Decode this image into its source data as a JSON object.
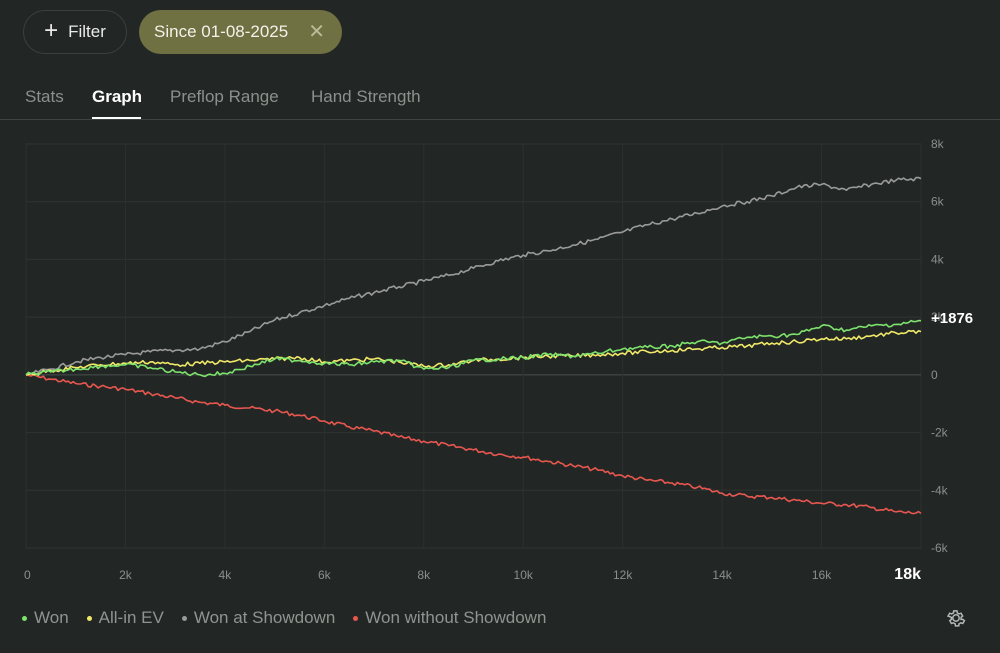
{
  "toolbar": {
    "filter_label": "Filter",
    "chip_label": "Since 01-08-2025"
  },
  "tabs": [
    {
      "label": "Stats",
      "active": false
    },
    {
      "label": "Graph",
      "active": true
    },
    {
      "label": "Preflop Range",
      "active": false
    },
    {
      "label": "Hand Strength",
      "active": false
    }
  ],
  "colors": {
    "won": "#7ee36c",
    "allin_ev": "#f0e868",
    "showdown": "#9a9a9a",
    "no_showdown": "#e8574f"
  },
  "chart_data": {
    "type": "line",
    "xlim": [
      0,
      18000
    ],
    "ylim": [
      -6000,
      8000
    ],
    "x_ticks": [
      "0",
      "2k",
      "4k",
      "6k",
      "8k",
      "10k",
      "12k",
      "14k",
      "16k",
      "18k"
    ],
    "y_ticks": [
      "8k",
      "6k",
      "4k",
      "2k",
      "0",
      "-2k",
      "-4k",
      "-6k"
    ],
    "end_label": "+1876",
    "grid": true,
    "legend_position": "bottom-left",
    "series": [
      {
        "name": "Won",
        "color_key": "won",
        "x": [
          0,
          500,
          1000,
          1500,
          2000,
          2500,
          3000,
          3500,
          4000,
          4500,
          5000,
          5500,
          6000,
          6500,
          7000,
          7500,
          8000,
          8500,
          9000,
          9500,
          10000,
          10500,
          11000,
          11500,
          12000,
          12500,
          13000,
          13500,
          14000,
          14500,
          15000,
          15500,
          16000,
          16500,
          17000,
          17500,
          18000
        ],
        "y": [
          0,
          100,
          200,
          300,
          350,
          250,
          100,
          0,
          50,
          300,
          550,
          500,
          400,
          350,
          450,
          500,
          200,
          250,
          500,
          550,
          600,
          700,
          650,
          750,
          900,
          950,
          1000,
          1150,
          1100,
          1300,
          1350,
          1400,
          1700,
          1550,
          1700,
          1750,
          1876
        ]
      },
      {
        "name": "All-in EV",
        "color_key": "allin_ev",
        "x": [
          0,
          500,
          1000,
          1500,
          2000,
          2500,
          3000,
          3500,
          4000,
          4500,
          5000,
          5500,
          6000,
          6500,
          7000,
          7500,
          8000,
          8500,
          9000,
          9500,
          10000,
          10500,
          11000,
          11500,
          12000,
          12500,
          13000,
          13500,
          14000,
          14500,
          15000,
          15500,
          16000,
          16500,
          17000,
          17500,
          18000
        ],
        "y": [
          0,
          150,
          250,
          350,
          400,
          450,
          350,
          400,
          450,
          500,
          550,
          600,
          450,
          500,
          550,
          450,
          300,
          350,
          500,
          550,
          600,
          650,
          650,
          700,
          750,
          800,
          850,
          900,
          950,
          1000,
          1100,
          1150,
          1250,
          1250,
          1350,
          1450,
          1500
        ]
      },
      {
        "name": "Won at Showdown",
        "color_key": "showdown",
        "x": [
          0,
          500,
          1000,
          1500,
          2000,
          2500,
          3000,
          3500,
          4000,
          4500,
          5000,
          5500,
          6000,
          6500,
          7000,
          7500,
          8000,
          8500,
          9000,
          9500,
          10000,
          10500,
          11000,
          11500,
          12000,
          12500,
          13000,
          13500,
          14000,
          14500,
          15000,
          15500,
          16000,
          16500,
          17000,
          17500,
          18000
        ],
        "y": [
          0,
          200,
          450,
          600,
          700,
          800,
          850,
          900,
          1150,
          1500,
          1900,
          2150,
          2400,
          2650,
          2850,
          3050,
          3250,
          3450,
          3700,
          3950,
          4150,
          4300,
          4500,
          4700,
          4950,
          5200,
          5400,
          5600,
          5850,
          6000,
          6200,
          6500,
          6600,
          6400,
          6600,
          6750,
          6800
        ]
      },
      {
        "name": "Won without Showdown",
        "color_key": "no_showdown",
        "x": [
          0,
          500,
          1000,
          1500,
          2000,
          2500,
          3000,
          3500,
          4000,
          4500,
          5000,
          5500,
          6000,
          6500,
          7000,
          7500,
          8000,
          8500,
          9000,
          9500,
          10000,
          10500,
          11000,
          11500,
          12000,
          12500,
          13000,
          13500,
          14000,
          14500,
          15000,
          15500,
          16000,
          16500,
          17000,
          17500,
          18000
        ],
        "y": [
          0,
          -150,
          -300,
          -400,
          -500,
          -650,
          -800,
          -950,
          -1050,
          -1150,
          -1250,
          -1400,
          -1600,
          -1800,
          -1950,
          -2150,
          -2300,
          -2450,
          -2600,
          -2750,
          -2850,
          -3000,
          -3150,
          -3300,
          -3500,
          -3650,
          -3750,
          -3900,
          -4100,
          -4200,
          -4250,
          -4350,
          -4450,
          -4500,
          -4600,
          -4750,
          -4800
        ]
      }
    ]
  },
  "legend": [
    {
      "label": "Won",
      "color_key": "won"
    },
    {
      "label": "All-in EV",
      "color_key": "allin_ev"
    },
    {
      "label": "Won at Showdown",
      "color_key": "showdown"
    },
    {
      "label": "Won without Showdown",
      "color_key": "no_showdown"
    }
  ],
  "icons": {
    "filter": "plus-icon",
    "chip_close": "close-icon",
    "settings": "gear-icon"
  }
}
